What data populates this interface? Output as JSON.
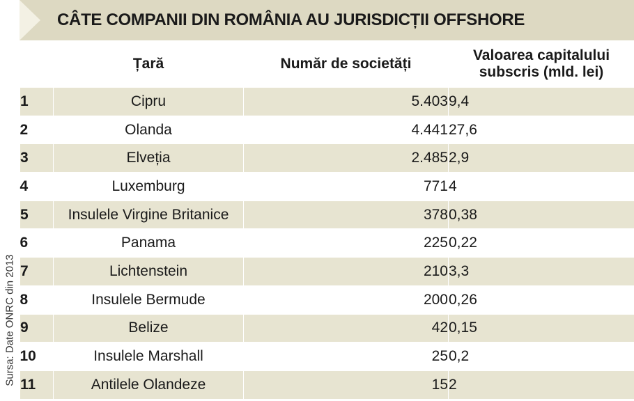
{
  "title": "CÂTE COMPANII DIN ROMÂNIA AU JURISDICȚII OFFSHORE",
  "source": "Sursa: Date ONRC din 2013",
  "chart_data": {
    "type": "table",
    "title": "CÂTE COMPANII DIN ROMÂNIA AU JURISDICȚII OFFSHORE",
    "columns": [
      "",
      "Țară",
      "Număr de societăți",
      "Valoarea capitalului subscris (mld. lei)"
    ],
    "column_lines": [
      [
        "Valoarea capitalului",
        "subscris (mld. lei)"
      ]
    ],
    "rows": [
      {
        "rank": "1",
        "country": "Cipru",
        "companies": "5.403",
        "capital": "9,4"
      },
      {
        "rank": "2",
        "country": "Olanda",
        "companies": "4.441",
        "capital": "27,6"
      },
      {
        "rank": "3",
        "country": "Elveția",
        "companies": "2.485",
        "capital": "2,9"
      },
      {
        "rank": "4",
        "country": "Luxemburg",
        "companies": "771",
        "capital": "4"
      },
      {
        "rank": "5",
        "country": "Insulele Virgine Britanice",
        "companies": "378",
        "capital": "0,38"
      },
      {
        "rank": "6",
        "country": "Panama",
        "companies": "225",
        "capital": "0,22"
      },
      {
        "rank": "7",
        "country": "Lichtenstein",
        "companies": "210",
        "capital": "3,3"
      },
      {
        "rank": "8",
        "country": "Insulele Bermude",
        "companies": "200",
        "capital": "0,26"
      },
      {
        "rank": "9",
        "country": "Belize",
        "companies": "42",
        "capital": "0,15"
      },
      {
        "rank": "10",
        "country": "Insulele Marshall",
        "companies": "25",
        "capital": "0,2"
      },
      {
        "rank": "11",
        "country": "Antilele Olandeze",
        "companies": "15",
        "capital": "2"
      }
    ]
  }
}
